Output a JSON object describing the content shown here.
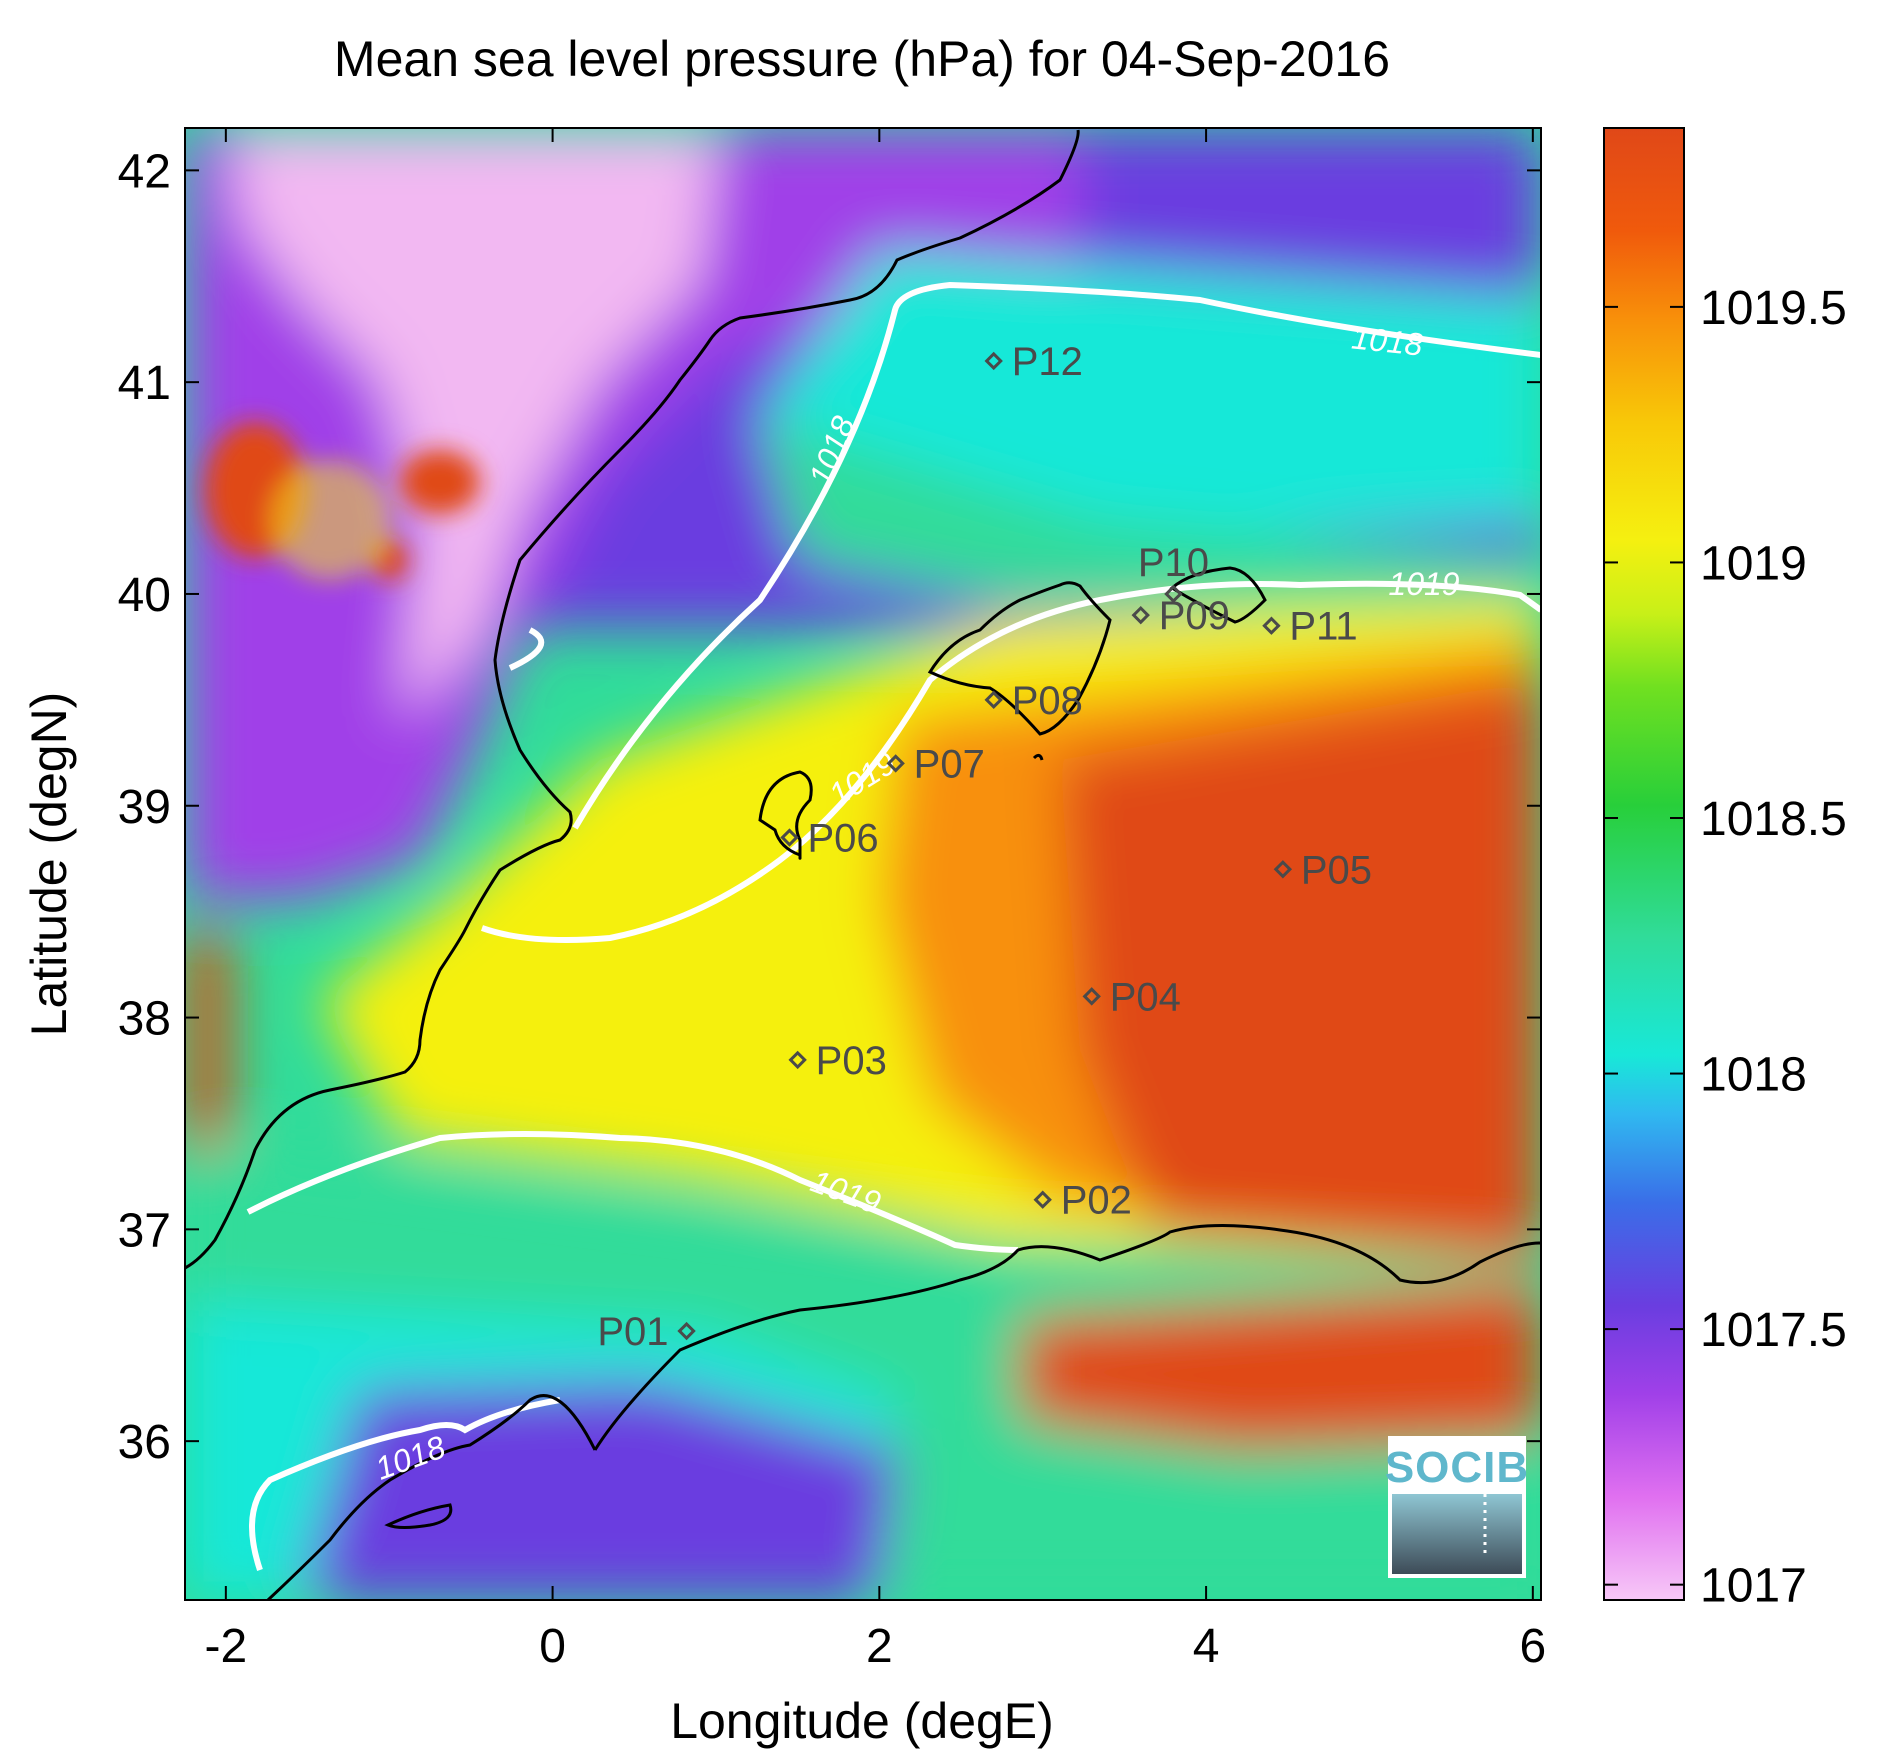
{
  "title": "Mean sea level pressure (hPa) for 04-Sep-2016",
  "xlabel": "Longitude (degE)",
  "ylabel": "Latitude (degN)",
  "x_ticks": [
    "-2",
    "0",
    "2",
    "4",
    "6"
  ],
  "y_ticks": [
    "36",
    "37",
    "38",
    "39",
    "40",
    "41",
    "42"
  ],
  "colorbar_ticks": [
    "1017",
    "1017.5",
    "1018",
    "1018.5",
    "1019",
    "1019.5"
  ],
  "colorbar": {
    "min": 1016.97,
    "max": 1019.85,
    "stops": [
      "#f7c8f7",
      "#e070f0",
      "#a040e8",
      "#6a3de0",
      "#3a6ee8",
      "#30b8f0",
      "#18e8d8",
      "#30dc9a",
      "#28cf3a",
      "#70e020",
      "#c8f018",
      "#f5f010",
      "#f8c808",
      "#f8900a",
      "#f05a0c",
      "#e04818"
    ]
  },
  "chart_data": {
    "type": "heatmap",
    "variable": "Mean sea level pressure (hPa)",
    "date": "04-Sep-2016",
    "xlim": [
      -2.25,
      6.05
    ],
    "ylim": [
      35.25,
      42.2
    ],
    "xlabel": "Longitude (degE)",
    "ylabel": "Latitude (degN)",
    "contours": [
      {
        "level": 1018,
        "label": "1018"
      },
      {
        "level": 1019,
        "label": "1019"
      }
    ],
    "stations": [
      {
        "name": "P01",
        "lon": 0.82,
        "lat": 36.52
      },
      {
        "name": "P02",
        "lon": 3.0,
        "lat": 37.14
      },
      {
        "name": "P03",
        "lon": 1.5,
        "lat": 37.8
      },
      {
        "name": "P04",
        "lon": 3.3,
        "lat": 38.1
      },
      {
        "name": "P05",
        "lon": 4.47,
        "lat": 38.7
      },
      {
        "name": "P06",
        "lon": 1.45,
        "lat": 38.85
      },
      {
        "name": "P07",
        "lon": 2.1,
        "lat": 39.2
      },
      {
        "name": "P08",
        "lon": 2.7,
        "lat": 39.5
      },
      {
        "name": "P09",
        "lon": 3.6,
        "lat": 39.9
      },
      {
        "name": "P10",
        "lon": 3.8,
        "lat": 40.0
      },
      {
        "name": "P11",
        "lon": 4.4,
        "lat": 39.85
      },
      {
        "name": "P12",
        "lon": 2.7,
        "lat": 41.1
      }
    ]
  },
  "logo": {
    "text": "SOCIB"
  }
}
